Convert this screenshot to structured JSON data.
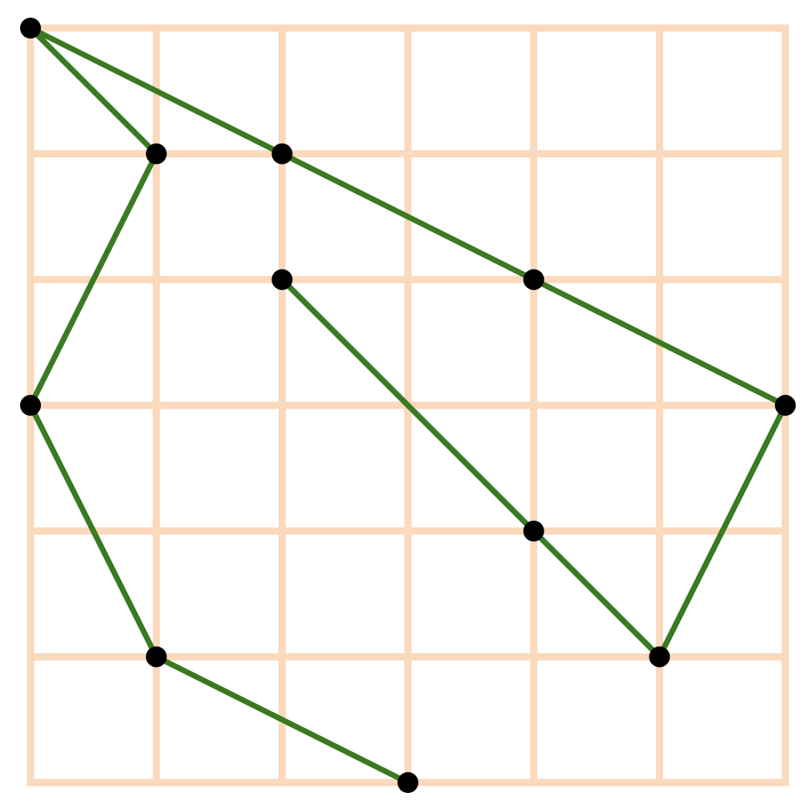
{
  "grid": {
    "columns": 6,
    "rows": 6,
    "color": "#FAD9BC"
  },
  "path": {
    "color": "#3A7A22",
    "vertices": [
      [
        3,
        6
      ],
      [
        1,
        5
      ],
      [
        0,
        3
      ],
      [
        1,
        1
      ],
      [
        0,
        0
      ],
      [
        2,
        1
      ],
      [
        4,
        2
      ],
      [
        6,
        3
      ],
      [
        5,
        5
      ],
      [
        4,
        4
      ],
      [
        2,
        2
      ]
    ]
  },
  "points": {
    "color": "#000000"
  }
}
